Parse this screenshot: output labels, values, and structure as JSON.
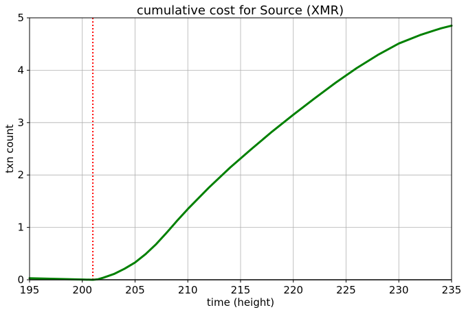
{
  "chart_data": {
    "type": "line",
    "title": "cumulative cost for Source (XMR)",
    "xlabel": "time (height)",
    "ylabel": "txn count",
    "xlim": [
      195,
      235
    ],
    "ylim": [
      0,
      5
    ],
    "xticks": [
      195,
      200,
      205,
      210,
      215,
      220,
      225,
      230,
      235
    ],
    "yticks": [
      0,
      1,
      2,
      3,
      4,
      5
    ],
    "grid": true,
    "legend": "none",
    "series": [
      {
        "color": "#008000",
        "x": [
          195,
          196,
          197,
          198,
          199,
          200,
          201,
          201.5,
          202,
          203,
          204,
          205,
          206,
          207,
          208,
          209,
          210,
          212,
          214,
          216,
          218,
          220,
          222,
          224,
          226,
          228,
          230,
          232,
          234,
          235
        ],
        "y": [
          0.03,
          0.025,
          0.02,
          0.015,
          0.01,
          0.005,
          0.0,
          0.01,
          0.04,
          0.11,
          0.21,
          0.33,
          0.49,
          0.68,
          0.9,
          1.13,
          1.35,
          1.76,
          2.14,
          2.49,
          2.83,
          3.15,
          3.46,
          3.76,
          4.04,
          4.29,
          4.51,
          4.67,
          4.8,
          4.85
        ]
      }
    ],
    "reference_lines": [
      {
        "orientation": "vertical",
        "x": 201,
        "color": "#ff0000",
        "style": "dotted"
      }
    ],
    "baseline": {
      "y": 0,
      "color": "#000000"
    }
  }
}
